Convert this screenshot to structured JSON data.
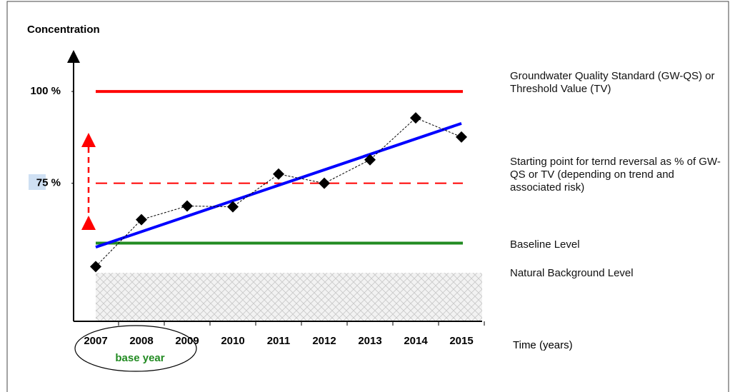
{
  "chart_data": {
    "type": "line",
    "y_axis_title": "Concentration",
    "x_axis_title": "Time (years)",
    "annotation": "base year",
    "categories": [
      "2007",
      "2008",
      "2009",
      "2010",
      "2011",
      "2012",
      "2013",
      "2014",
      "2015"
    ],
    "series": [
      {
        "color": "#000000",
        "values": [
          52.3,
          65.1,
          68.8,
          68.6,
          77.5,
          75,
          81.4,
          92.8,
          87.6
        ]
      }
    ],
    "trend": {
      "color": "#0000ff",
      "start": 57.6,
      "end": 91.3
    },
    "ylim": [
      37.4,
      111.3
    ],
    "yticks": [
      {
        "value": 100,
        "label": "100 %"
      },
      {
        "value": 75,
        "label": "75 %"
      }
    ],
    "reference_lines": [
      {
        "label": "Groundwater Quality Standard (GW-QS) or Threshold Value (TV)",
        "value": 100,
        "color": "#ff0000",
        "style": "solid"
      },
      {
        "label": "Starting point for ternd reversal as % of GW-QS or TV (depending on trend and associated risk)",
        "value": 75,
        "color": "#ff0000",
        "style": "dashed"
      },
      {
        "label": "Baseline Level",
        "value": 58.7,
        "color": "#228b22",
        "style": "solid"
      }
    ],
    "background_band": {
      "label": "Natural Background Level",
      "range": [
        37.4,
        50.6
      ]
    }
  }
}
